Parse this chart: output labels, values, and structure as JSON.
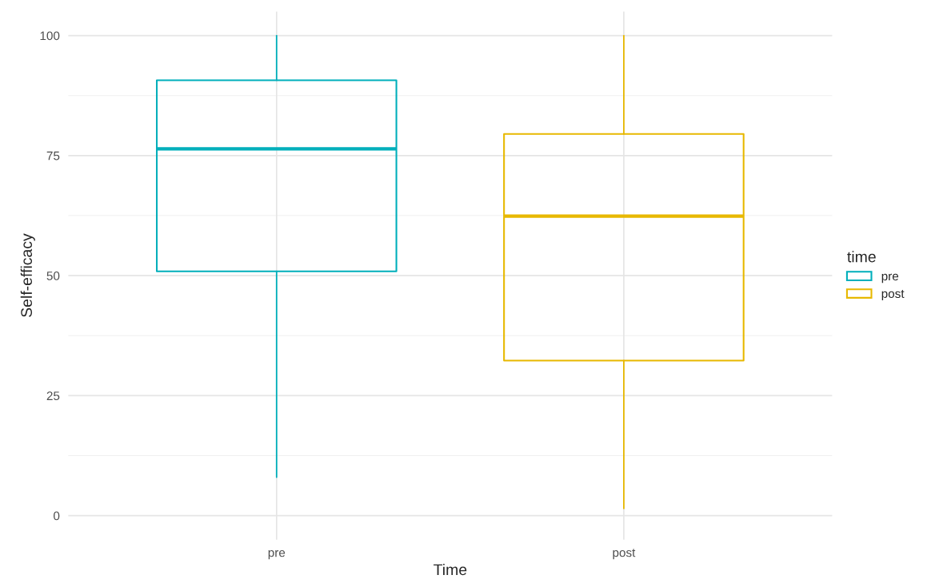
{
  "chart_data": {
    "type": "box",
    "xlabel": "Time",
    "ylabel": "Self-efficacy",
    "legend_title": "time",
    "legend": "right",
    "categories": [
      "pre",
      "post"
    ],
    "series": [
      {
        "name": "pre",
        "color": "#00afbb",
        "boxes": [
          {
            "low": 8,
            "q1": 50.9,
            "median": 76.4,
            "q3": 90.7,
            "high": 100
          },
          null
        ]
      },
      {
        "name": "post",
        "color": "#e7b800",
        "boxes": [
          null,
          {
            "low": 1.5,
            "q1": 32.3,
            "median": 62.4,
            "q3": 79.5,
            "high": 100
          }
        ]
      }
    ],
    "ylim": [
      -5,
      105
    ],
    "yticks": [
      0,
      25,
      50,
      75,
      100
    ],
    "grid": true
  }
}
